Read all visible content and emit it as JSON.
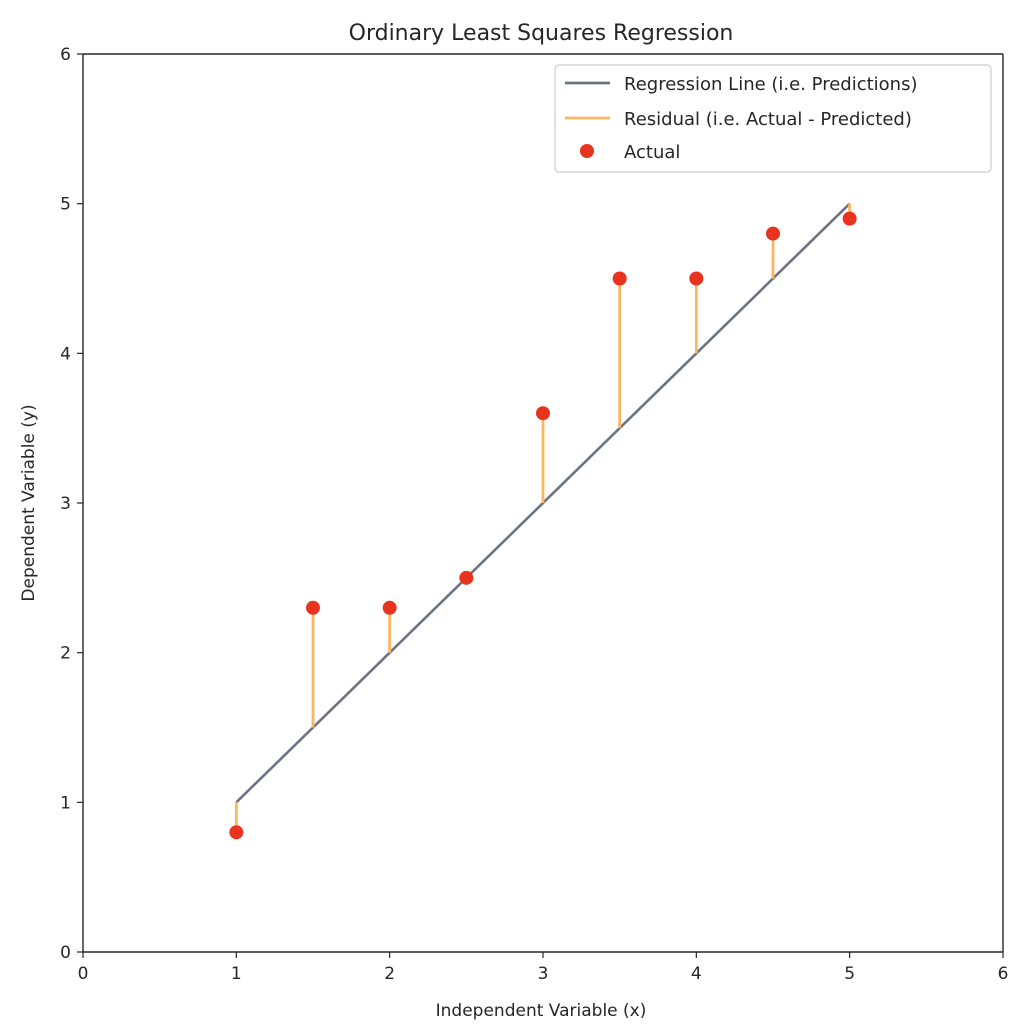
{
  "chart_data": {
    "type": "scatter",
    "title": "Ordinary Least Squares Regression",
    "xlabel": "Independent Variable (x)",
    "ylabel": "Dependent Variable (y)",
    "xlim": [
      0,
      6
    ],
    "ylim": [
      0,
      6
    ],
    "x_ticks": [
      0,
      1,
      2,
      3,
      4,
      5,
      6
    ],
    "y_ticks": [
      0,
      1,
      2,
      3,
      4,
      5,
      6
    ],
    "grid": false,
    "legend_position": "top-right",
    "series": [
      {
        "name": "Regression Line (i.e. Predictions)",
        "kind": "line",
        "color": "#6b7480",
        "x": [
          1,
          5
        ],
        "y": [
          1,
          5
        ]
      },
      {
        "name": "Residual (i.e. Actual - Predicted)",
        "kind": "residual",
        "color": "#fcb661"
      },
      {
        "name": "Actual",
        "kind": "scatter",
        "color": "#e8331e",
        "x": [
          1,
          1.5,
          2,
          2.5,
          3,
          3.5,
          4,
          4.5,
          5
        ],
        "y": [
          0.8,
          2.3,
          2.3,
          2.5,
          3.6,
          4.5,
          4.5,
          4.8,
          4.9
        ]
      }
    ]
  }
}
